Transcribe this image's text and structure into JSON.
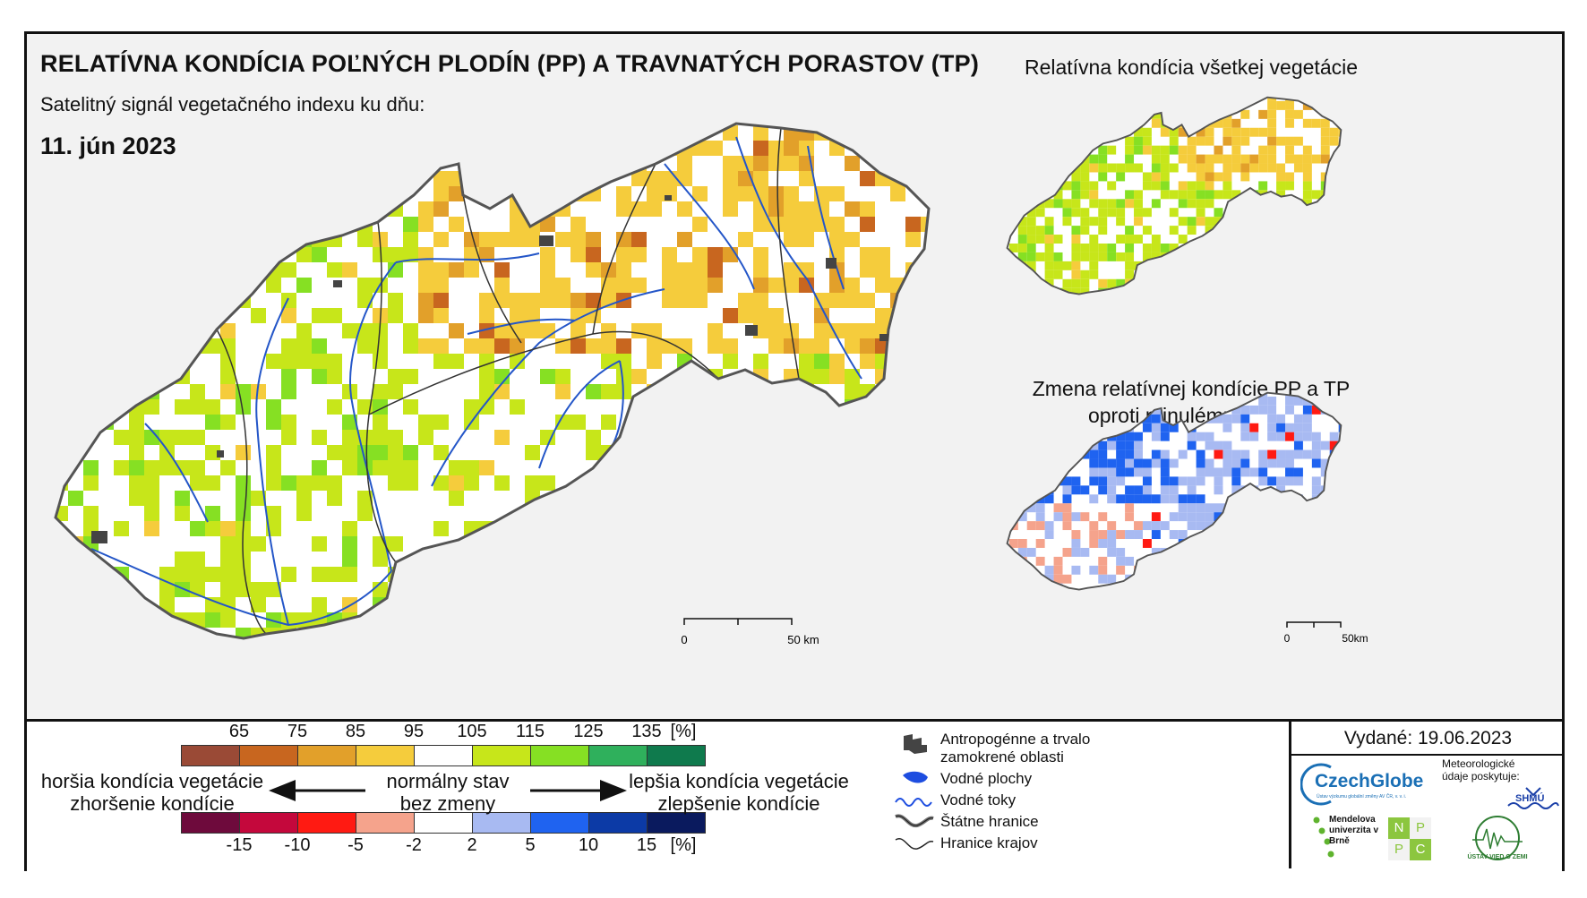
{
  "header": {
    "title": "RELATÍVNA KONDÍCIA POĽNÝCH PLODÍN (PP) A TRAVNATÝCH PORASTOV (TP)",
    "subtitle": "Satelitný signál vegetačného indexu ku dňu:",
    "date": "11. jún 2023"
  },
  "side_maps": {
    "top_title": "Relatívna kondícia všetkej vegetácie",
    "bottom_title_line1": "Zmena relatívnej kondície PP a TP",
    "bottom_title_line2": "oproti minulému týždni"
  },
  "scalebar_main": {
    "start": "0",
    "end": "50 km"
  },
  "scalebar_side": {
    "start": "0",
    "end": "50km"
  },
  "legend": {
    "condition_ticks": [
      "65",
      "75",
      "85",
      "95",
      "105",
      "115",
      "125",
      "135",
      "[%]"
    ],
    "condition_colors": [
      "#9a4a36",
      "#c8661f",
      "#e2a02a",
      "#f5cc3c",
      "#ffffff",
      "#c7e61a",
      "#86e023",
      "#2fb05c",
      "#0f7a4d"
    ],
    "change_ticks": [
      "-15",
      "-10",
      "-5",
      "-2",
      "2",
      "5",
      "10",
      "15",
      "[%]"
    ],
    "change_colors": [
      "#6e0a3c",
      "#c4083c",
      "#ff1a12",
      "#f5a38c",
      "#ffffff",
      "#a8baf2",
      "#1f63f0",
      "#0c3aa6",
      "#0a1a5e"
    ],
    "worse_line1": "horšia kondícia vegetácie",
    "worse_line2": "zhoršenie kondície",
    "normal_line1": "normálny stav",
    "normal_line2": "bez zmeny",
    "better_line1": "lepšia kondícia vegetácie",
    "better_line2": "zlepšenie kondície",
    "symbols": [
      {
        "icon": "urban-area-icon",
        "label": "Antropogénne a trvalo zamokrené oblasti"
      },
      {
        "icon": "water-body-icon",
        "label": "Vodné plochy"
      },
      {
        "icon": "river-icon",
        "label": "Vodné toky"
      },
      {
        "icon": "state-border-icon",
        "label": "Štátne hranice"
      },
      {
        "icon": "region-border-icon",
        "label": "Hranice krajov"
      }
    ],
    "issued": "Vydané: 19.06.2023",
    "meteo_label": "Meteorologické údaje poskytuje:",
    "logos": {
      "czechglobe": "CzechGlobe",
      "czechglobe_sub": "Ústav výzkumu globální změny AV ČR, v. v. i.",
      "mendel": "Mendelova univerzita v Brně",
      "nppc": [
        "N",
        "P",
        "P",
        "C"
      ],
      "uvz": "ÚSTAV VIED O ZEMI",
      "shmu": "SHMÚ"
    }
  }
}
